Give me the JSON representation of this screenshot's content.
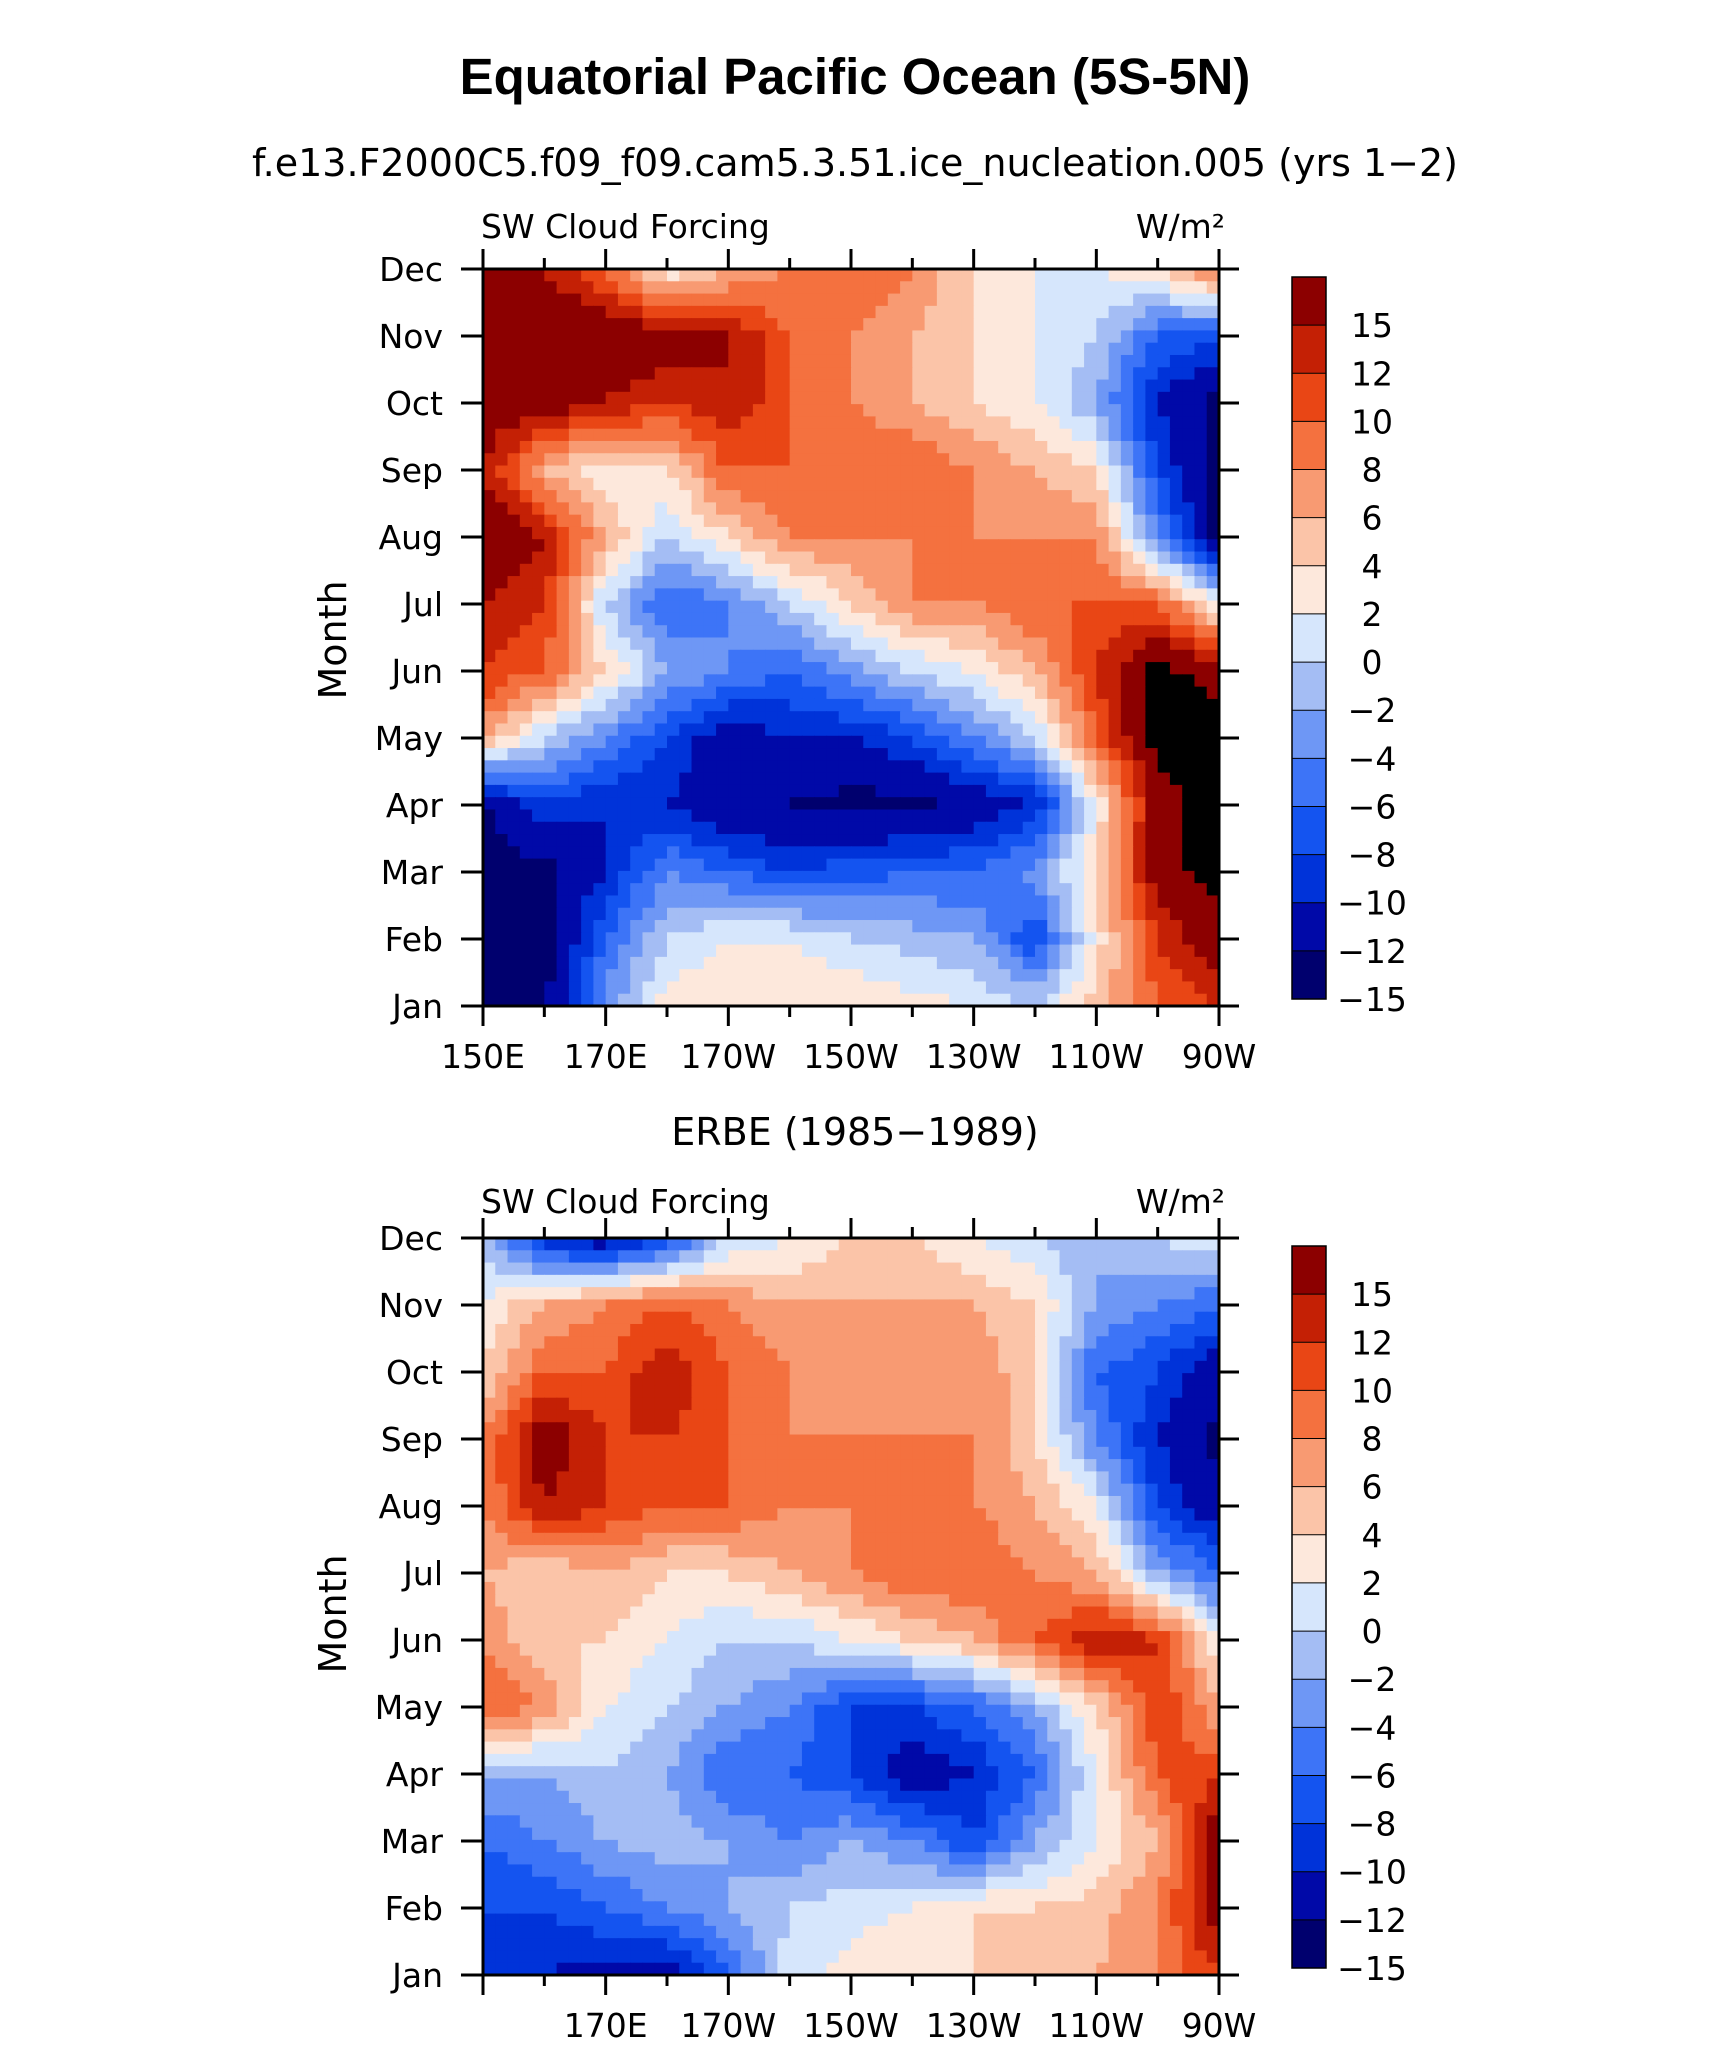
{
  "title": "Equatorial Pacific Ocean (5S-5N)",
  "chart_data": {
    "type": "heatmap",
    "color_levels": [
      -15,
      -12,
      -10,
      -8,
      -6,
      -4,
      -2,
      0,
      2,
      4,
      6,
      8,
      10,
      12,
      15
    ],
    "colorbar_labels": [
      "15",
      "12",
      "10",
      "8",
      "6",
      "4",
      "2",
      "0",
      "−2",
      "−4",
      "−6",
      "−8",
      "−10",
      "−12",
      "−15"
    ],
    "colors": [
      "#00006e",
      "#0009a8",
      "#0033d9",
      "#1454f0",
      "#3d74f7",
      "#6e97f5",
      "#a4bdf4",
      "#d6e6fc",
      "#fde8dc",
      "#fbc4a8",
      "#f89a72",
      "#f4713f",
      "#e94615",
      "#c42005",
      "#8c0000"
    ],
    "panels": [
      {
        "subtitle": "f.e13.F2000C5.f09_f09.cam5.3.51.ice_nucleation.005 (yrs 1−2)",
        "left_label": "SW Cloud Forcing",
        "right_label": "W/m²",
        "ylabel": "Month",
        "months": [
          "Jan",
          "Feb",
          "Mar",
          "Apr",
          "May",
          "Jun",
          "Jul",
          "Aug",
          "Sep",
          "Oct",
          "Nov",
          "Dec"
        ],
        "x_tick_labels": [
          "150E",
          "170E",
          "170W",
          "150W",
          "130W",
          "110W",
          "90W"
        ],
        "x_range_deg_east": [
          150,
          270
        ],
        "lon_grid": [
          150,
          160,
          170,
          180,
          190,
          200,
          210,
          220,
          230,
          240,
          250,
          260,
          270
        ],
        "values": [
          [
            -16,
            -16,
            -5,
            1,
            2,
            2,
            2,
            1,
            0,
            -2,
            3,
            8,
            10
          ],
          [
            -16,
            -16,
            -8,
            -2,
            0,
            0,
            -2,
            -3,
            -4,
            -10,
            1,
            10,
            14
          ],
          [
            -16,
            -16,
            -12,
            -6,
            -8,
            -10,
            -9,
            -8,
            -8,
            -5,
            2,
            14,
            16
          ],
          [
            -16,
            -10,
            -12,
            -12,
            -15,
            -15,
            -16,
            -16,
            -14,
            -12,
            0,
            14,
            16
          ],
          [
            5,
            -2,
            -6,
            -10,
            -14,
            -12,
            -12,
            -10,
            -6,
            -2,
            8,
            16,
            16
          ],
          [
            10,
            8,
            2,
            -4,
            -6,
            -8,
            -5,
            -2,
            0,
            4,
            10,
            16,
            14
          ],
          [
            12,
            10,
            -2,
            -8,
            -6,
            -2,
            2,
            6,
            6,
            8,
            8,
            8,
            0
          ],
          [
            15,
            12,
            4,
            -2,
            2,
            6,
            6,
            6,
            6,
            6,
            6,
            -6,
            -16
          ],
          [
            12,
            4,
            0,
            2,
            8,
            8,
            8,
            8,
            6,
            4,
            2,
            -10,
            -16
          ],
          [
            14,
            14,
            12,
            10,
            12,
            8,
            6,
            4,
            2,
            0,
            -4,
            -12,
            -16
          ],
          [
            15,
            15,
            14,
            14,
            12,
            8,
            6,
            4,
            2,
            0,
            -2,
            -8,
            -10
          ],
          [
            12,
            12,
            8,
            0,
            4,
            6,
            8,
            6,
            2,
            0,
            0,
            2,
            8
          ]
        ]
      },
      {
        "subtitle": "ERBE (1985−1989)",
        "left_label": "SW Cloud Forcing",
        "right_label": "W/m²",
        "ylabel": "Month",
        "months": [
          "Jan",
          "Feb",
          "Mar",
          "Apr",
          "May",
          "Jun",
          "Jul",
          "Aug",
          "Sep",
          "Oct",
          "Nov",
          "Dec"
        ],
        "x_tick_labels": [
          "170E",
          "170W",
          "150W",
          "130W",
          "110W",
          "90W"
        ],
        "x_range_deg_east": [
          150,
          270
        ],
        "lon_grid": [
          150,
          160,
          170,
          180,
          190,
          200,
          210,
          220,
          230,
          240,
          250,
          260,
          270
        ],
        "values": [
          [
            -12,
            -12,
            -13,
            -14,
            -8,
            -1,
            1,
            2,
            2,
            3,
            4,
            6,
            10
          ],
          [
            -10,
            -10,
            -8,
            -6,
            -4,
            -2,
            -1,
            0,
            2,
            2,
            3,
            6,
            14
          ],
          [
            -8,
            -6,
            -4,
            -3,
            -4,
            -6,
            -4,
            -6,
            -10,
            -4,
            0,
            4,
            14
          ],
          [
            -4,
            -4,
            -2,
            -4,
            -8,
            -8,
            -10,
            -14,
            -12,
            -8,
            0,
            8,
            10
          ],
          [
            8,
            6,
            0,
            -2,
            -4,
            -6,
            -10,
            -10,
            -8,
            -4,
            2,
            10,
            4
          ],
          [
            6,
            2,
            2,
            0,
            -2,
            -2,
            0,
            2,
            4,
            8,
            12,
            10,
            0
          ],
          [
            4,
            2,
            4,
            2,
            2,
            4,
            6,
            8,
            8,
            6,
            4,
            -4,
            -8
          ],
          [
            6,
            12,
            10,
            8,
            8,
            6,
            6,
            6,
            6,
            4,
            0,
            -10,
            -14
          ],
          [
            6,
            14,
            10,
            10,
            8,
            6,
            6,
            6,
            6,
            2,
            -6,
            -12,
            -16
          ],
          [
            2,
            8,
            8,
            12,
            8,
            6,
            4,
            4,
            6,
            2,
            -8,
            -10,
            -14
          ],
          [
            0,
            4,
            6,
            8,
            6,
            4,
            4,
            4,
            4,
            2,
            -4,
            -6,
            -8
          ],
          [
            -2,
            -12,
            -14,
            -10,
            -2,
            0,
            2,
            2,
            0,
            -2,
            -4,
            -2,
            0
          ]
        ]
      }
    ]
  }
}
